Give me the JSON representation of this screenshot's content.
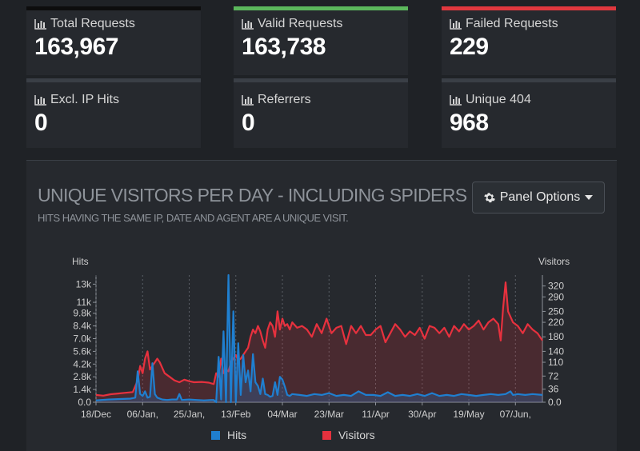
{
  "cards": [
    {
      "label": "Total Requests",
      "value": "163,967",
      "accent": "#0d0d0d"
    },
    {
      "label": "Valid Requests",
      "value": "163,738",
      "accent": "#5cb85c"
    },
    {
      "label": "Failed Requests",
      "value": "229",
      "accent": "#e0383e"
    },
    {
      "label": "Excl. IP Hits",
      "value": "0"
    },
    {
      "label": "Referrers",
      "value": "0"
    },
    {
      "label": "Unique 404",
      "value": "968"
    }
  ],
  "panel": {
    "title": "UNIQUE VISITORS PER DAY - INCLUDING SPIDERS",
    "subtitle": "HITS HAVING THE SAME IP, DATE AND AGENT ARE A UNIQUE VISIT.",
    "options_label": "Panel Options",
    "options_icon": "gear-icon",
    "caret_icon": "caret-down-icon"
  },
  "chart_data": {
    "type": "line",
    "ylabel": "Hits",
    "y2label": "Visitors",
    "y_ticks": [
      "0.0",
      "1.4k",
      "2.8k",
      "4.2k",
      "5.6k",
      "7.0k",
      "8.4k",
      "9.8k",
      "11k",
      "13k"
    ],
    "y_tick_values": [
      0,
      1400,
      2800,
      4200,
      5600,
      7000,
      8400,
      9800,
      11000,
      13000
    ],
    "y2_ticks": [
      "0.0",
      "36",
      "72",
      "110",
      "140",
      "180",
      "220",
      "250",
      "290",
      "320"
    ],
    "y2_tick_values": [
      0,
      36,
      72,
      110,
      140,
      180,
      220,
      250,
      290,
      320
    ],
    "x_ticks": [
      "18/Dec",
      "06/Jan,",
      "25/Jan,",
      "13/Feb",
      "04/Mar",
      "23/Mar",
      "11/Apr",
      "30/Apr",
      "19/May",
      "07/Jun,"
    ],
    "x_tick_days": [
      0,
      19,
      38,
      57,
      76,
      95,
      114,
      133,
      152,
      171
    ],
    "x_end_day": 182,
    "ylim": [
      0,
      14000
    ],
    "y2lim": [
      0,
      350
    ],
    "series": [
      {
        "name": "Hits",
        "color": "#1f7fd0",
        "axis": "left",
        "points": [
          [
            0,
            200
          ],
          [
            5,
            300
          ],
          [
            10,
            350
          ],
          [
            14,
            400
          ],
          [
            16,
            500
          ],
          [
            17,
            3400
          ],
          [
            18,
            900
          ],
          [
            19,
            700
          ],
          [
            20,
            1200
          ],
          [
            21,
            500
          ],
          [
            22,
            600
          ],
          [
            23,
            4300
          ],
          [
            24,
            900
          ],
          [
            25,
            500
          ],
          [
            27,
            300
          ],
          [
            29,
            250
          ],
          [
            31,
            300
          ],
          [
            33,
            300
          ],
          [
            34,
            900
          ],
          [
            35,
            250
          ],
          [
            38,
            300
          ],
          [
            41,
            250
          ],
          [
            44,
            200
          ],
          [
            47,
            250
          ],
          [
            48,
            250
          ],
          [
            49,
            0
          ],
          [
            50,
            5000
          ],
          [
            51,
            300
          ],
          [
            52,
            7800
          ],
          [
            53,
            0
          ],
          [
            54,
            14000
          ],
          [
            55,
            0
          ],
          [
            56,
            10000
          ],
          [
            57,
            0
          ],
          [
            58,
            6500
          ],
          [
            59,
            800
          ],
          [
            60,
            5200
          ],
          [
            61,
            2200
          ],
          [
            62,
            3500
          ],
          [
            63,
            1200
          ],
          [
            64,
            5300
          ],
          [
            65,
            2200
          ],
          [
            66,
            1800
          ],
          [
            67,
            900
          ],
          [
            68,
            2600
          ],
          [
            69,
            900
          ],
          [
            70,
            800
          ],
          [
            71,
            600
          ],
          [
            72,
            700
          ],
          [
            73,
            2200
          ],
          [
            74,
            800
          ],
          [
            75,
            2800
          ],
          [
            76,
            2500
          ],
          [
            77,
            1700
          ],
          [
            78,
            800
          ],
          [
            79,
            700
          ],
          [
            80,
            900
          ],
          [
            83,
            800
          ],
          [
            86,
            700
          ],
          [
            89,
            900
          ],
          [
            92,
            800
          ],
          [
            95,
            1000
          ],
          [
            98,
            700
          ],
          [
            101,
            800
          ],
          [
            104,
            700
          ],
          [
            107,
            1200
          ],
          [
            110,
            800
          ],
          [
            113,
            800
          ],
          [
            116,
            700
          ],
          [
            119,
            1100
          ],
          [
            122,
            700
          ],
          [
            125,
            800
          ],
          [
            128,
            700
          ],
          [
            131,
            900
          ],
          [
            134,
            700
          ],
          [
            137,
            1000
          ],
          [
            140,
            700
          ],
          [
            143,
            800
          ],
          [
            146,
            700
          ],
          [
            149,
            900
          ],
          [
            152,
            800
          ],
          [
            155,
            700
          ],
          [
            158,
            800
          ],
          [
            161,
            900
          ],
          [
            164,
            800
          ],
          [
            167,
            900
          ],
          [
            169,
            1200
          ],
          [
            170,
            800
          ],
          [
            172,
            900
          ],
          [
            175,
            800
          ],
          [
            178,
            900
          ],
          [
            182,
            800
          ]
        ]
      },
      {
        "name": "Visitors",
        "color": "#e7313e",
        "axis": "right",
        "points": [
          [
            0,
            20
          ],
          [
            3,
            18
          ],
          [
            6,
            22
          ],
          [
            9,
            24
          ],
          [
            12,
            26
          ],
          [
            15,
            28
          ],
          [
            17,
            60
          ],
          [
            18,
            100
          ],
          [
            19,
            80
          ],
          [
            20,
            120
          ],
          [
            21,
            140
          ],
          [
            22,
            90
          ],
          [
            23,
            100
          ],
          [
            25,
            120
          ],
          [
            26,
            110
          ],
          [
            28,
            80
          ],
          [
            30,
            70
          ],
          [
            32,
            60
          ],
          [
            34,
            55
          ],
          [
            36,
            62
          ],
          [
            38,
            58
          ],
          [
            40,
            55
          ],
          [
            43,
            56
          ],
          [
            46,
            54
          ],
          [
            48,
            50
          ],
          [
            49,
            80
          ],
          [
            50,
            70
          ],
          [
            51,
            120
          ],
          [
            52,
            80
          ],
          [
            53,
            90
          ],
          [
            54,
            85
          ],
          [
            55,
            110
          ],
          [
            56,
            120
          ],
          [
            57,
            130
          ],
          [
            58,
            115
          ],
          [
            59,
            120
          ],
          [
            60,
            130
          ],
          [
            61,
            140
          ],
          [
            62,
            150
          ],
          [
            63,
            180
          ],
          [
            64,
            200
          ],
          [
            65,
            190
          ],
          [
            66,
            210
          ],
          [
            67,
            195
          ],
          [
            68,
            170
          ],
          [
            69,
            150
          ],
          [
            70,
            200
          ],
          [
            71,
            220
          ],
          [
            72,
            210
          ],
          [
            73,
            180
          ],
          [
            74,
            250
          ],
          [
            75,
            200
          ],
          [
            76,
            230
          ],
          [
            77,
            210
          ],
          [
            78,
            215
          ],
          [
            79,
            200
          ],
          [
            80,
            220
          ],
          [
            82,
            205
          ],
          [
            84,
            210
          ],
          [
            86,
            200
          ],
          [
            88,
            180
          ],
          [
            90,
            215
          ],
          [
            92,
            190
          ],
          [
            94,
            230
          ],
          [
            96,
            190
          ],
          [
            98,
            205
          ],
          [
            100,
            210
          ],
          [
            102,
            160
          ],
          [
            104,
            210
          ],
          [
            106,
            190
          ],
          [
            108,
            210
          ],
          [
            110,
            185
          ],
          [
            112,
            185
          ],
          [
            114,
            200
          ],
          [
            116,
            210
          ],
          [
            118,
            165
          ],
          [
            120,
            190
          ],
          [
            122,
            215
          ],
          [
            124,
            200
          ],
          [
            126,
            180
          ],
          [
            128,
            195
          ],
          [
            130,
            185
          ],
          [
            132,
            205
          ],
          [
            134,
            175
          ],
          [
            136,
            210
          ],
          [
            138,
            205
          ],
          [
            140,
            190
          ],
          [
            142,
            205
          ],
          [
            144,
            180
          ],
          [
            146,
            210
          ],
          [
            148,
            195
          ],
          [
            150,
            215
          ],
          [
            152,
            200
          ],
          [
            154,
            210
          ],
          [
            156,
            225
          ],
          [
            158,
            200
          ],
          [
            160,
            220
          ],
          [
            162,
            230
          ],
          [
            164,
            215
          ],
          [
            165,
            170
          ],
          [
            166,
            260
          ],
          [
            167,
            330
          ],
          [
            168,
            250
          ],
          [
            170,
            220
          ],
          [
            172,
            210
          ],
          [
            174,
            190
          ],
          [
            176,
            215
          ],
          [
            178,
            200
          ],
          [
            180,
            190
          ],
          [
            182,
            170
          ]
        ]
      }
    ]
  }
}
